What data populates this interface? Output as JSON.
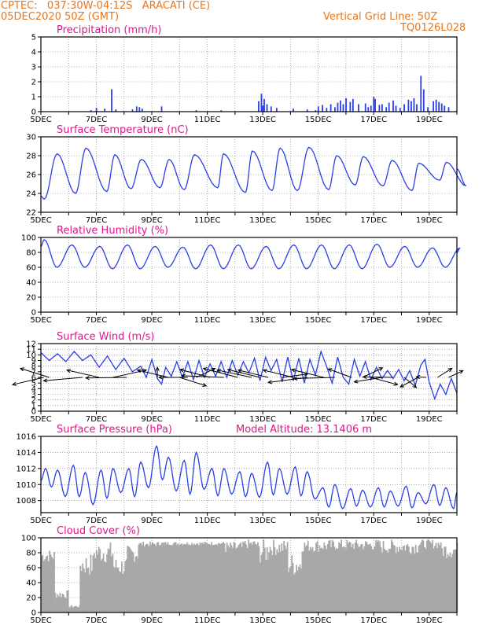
{
  "header": {
    "station": "CPTEC:   037:30W-04:12S   ARACATI (CE)",
    "datetime": "05DEC2020 50Z (GMT)",
    "grid_note": "Vertical Grid Line: 50Z",
    "code": "TQ0126L028"
  },
  "chart_data": [
    {
      "type": "bar",
      "title": "Precipitation (mm/h)",
      "ylim": [
        0,
        5
      ],
      "yticks": [
        0,
        1,
        2,
        3,
        4,
        5
      ],
      "xlim": [
        5,
        20
      ],
      "xticks": [
        "5DEC",
        "7DEC",
        "9DEC",
        "11DEC",
        "13DEC",
        "15DEC",
        "17DEC",
        "19DEC"
      ],
      "color": "#2b3fe6",
      "bars": [
        [
          6.8,
          0.1
        ],
        [
          7.0,
          0.25
        ],
        [
          7.3,
          0.2
        ],
        [
          7.55,
          1.5
        ],
        [
          7.7,
          0.15
        ],
        [
          8.3,
          0.15
        ],
        [
          8.45,
          0.35
        ],
        [
          8.55,
          0.3
        ],
        [
          8.65,
          0.2
        ],
        [
          9.35,
          0.35
        ],
        [
          10.6,
          0.1
        ],
        [
          11.5,
          0.1
        ],
        [
          12.85,
          0.7
        ],
        [
          12.95,
          1.2
        ],
        [
          13.0,
          0.4
        ],
        [
          13.05,
          0.85
        ],
        [
          13.15,
          0.5
        ],
        [
          13.3,
          0.35
        ],
        [
          13.5,
          0.25
        ],
        [
          14.1,
          0.2
        ],
        [
          14.6,
          0.15
        ],
        [
          14.9,
          0.1
        ],
        [
          15.0,
          0.35
        ],
        [
          15.15,
          0.45
        ],
        [
          15.3,
          0.25
        ],
        [
          15.45,
          0.5
        ],
        [
          15.6,
          0.3
        ],
        [
          15.7,
          0.6
        ],
        [
          15.8,
          0.75
        ],
        [
          15.9,
          0.5
        ],
        [
          16.0,
          0.9
        ],
        [
          16.15,
          0.65
        ],
        [
          16.25,
          0.85
        ],
        [
          16.45,
          0.5
        ],
        [
          16.7,
          0.55
        ],
        [
          16.8,
          0.3
        ],
        [
          16.9,
          0.4
        ],
        [
          17.0,
          1.0
        ],
        [
          17.05,
          0.85
        ],
        [
          17.2,
          0.45
        ],
        [
          17.3,
          0.5
        ],
        [
          17.45,
          0.3
        ],
        [
          17.55,
          0.6
        ],
        [
          17.7,
          0.75
        ],
        [
          17.8,
          0.4
        ],
        [
          17.95,
          0.25
        ],
        [
          18.1,
          0.5
        ],
        [
          18.25,
          0.8
        ],
        [
          18.35,
          0.7
        ],
        [
          18.45,
          0.9
        ],
        [
          18.55,
          0.5
        ],
        [
          18.7,
          2.4
        ],
        [
          18.8,
          1.5
        ],
        [
          18.95,
          0.3
        ],
        [
          19.15,
          0.7
        ],
        [
          19.25,
          0.8
        ],
        [
          19.35,
          0.65
        ],
        [
          19.45,
          0.55
        ],
        [
          19.55,
          0.4
        ],
        [
          19.7,
          0.3
        ]
      ]
    },
    {
      "type": "line",
      "title": "Surface Temperature (nC)",
      "ylim": [
        22,
        30
      ],
      "yticks": [
        22,
        24,
        26,
        28,
        30
      ],
      "xlim": [
        5,
        20
      ],
      "xticks": [
        "5DEC",
        "7DEC",
        "9DEC",
        "11DEC",
        "13DEC",
        "15DEC",
        "17DEC",
        "19DEC"
      ],
      "color": "#2b3fe6",
      "min_hours": [
        3,
        6,
        9,
        6,
        7,
        4,
        9,
        9,
        8,
        6,
        9,
        8,
        8,
        9,
        9
      ],
      "max_hours": [
        14,
        15,
        16,
        15,
        15,
        13,
        14,
        15,
        15,
        16,
        16,
        15,
        16,
        15,
        15
      ],
      "daily_min": [
        23.4,
        24.0,
        24.2,
        24.5,
        24.6,
        24.4,
        24.6,
        24.1,
        24.3,
        24.3,
        24.4,
        24.9,
        24.8,
        24.3,
        25.4,
        24.8
      ],
      "daily_max": [
        28.2,
        28.8,
        28.1,
        27.6,
        27.6,
        28.1,
        28.2,
        28.5,
        28.8,
        28.9,
        28.0,
        27.9,
        27.5,
        27.2,
        27.3
      ],
      "end_value": 26.6
    },
    {
      "type": "line",
      "title": "Relative Humidity (%)",
      "ylim": [
        0,
        100
      ],
      "yticks": [
        0,
        20,
        40,
        60,
        80,
        100
      ],
      "xlim": [
        5,
        20
      ],
      "xticks": [
        "5DEC",
        "7DEC",
        "9DEC",
        "11DEC",
        "13DEC",
        "15DEC",
        "17DEC",
        "19DEC"
      ],
      "color": "#2b3fe6",
      "start_value": 88,
      "daily_max": [
        97,
        90,
        88,
        90,
        88,
        87,
        90,
        90,
        88,
        90,
        90,
        90,
        91,
        88,
        86,
        86
      ],
      "daily_min": [
        60,
        60,
        58,
        58,
        60,
        58,
        58,
        58,
        58,
        58,
        58,
        58,
        60,
        60,
        60
      ],
      "end_value": 80
    },
    {
      "type": "line",
      "title": "Surface Wind (m/s)",
      "ylim": [
        0,
        12
      ],
      "yticks": [
        0,
        1,
        2,
        3,
        4,
        5,
        6,
        7,
        8,
        9,
        10,
        11,
        12
      ],
      "xlim": [
        5,
        20
      ],
      "xticks": [
        "5DEC",
        "7DEC",
        "9DEC",
        "11DEC",
        "13DEC",
        "15DEC",
        "17DEC",
        "19DEC"
      ],
      "color": "#2b3fe6",
      "wind_speed": [
        [
          5.0,
          10.4
        ],
        [
          5.3,
          9.0
        ],
        [
          5.6,
          10.2
        ],
        [
          5.9,
          8.8
        ],
        [
          6.2,
          10.6
        ],
        [
          6.5,
          9.0
        ],
        [
          6.8,
          10.0
        ],
        [
          7.1,
          7.8
        ],
        [
          7.4,
          9.8
        ],
        [
          7.7,
          7.4
        ],
        [
          8.0,
          9.4
        ],
        [
          8.3,
          7.0
        ],
        [
          8.6,
          8.0
        ],
        [
          8.8,
          6.0
        ],
        [
          9.0,
          9.2
        ],
        [
          9.2,
          5.8
        ],
        [
          9.35,
          4.8
        ],
        [
          9.5,
          7.8
        ],
        [
          9.7,
          6.2
        ],
        [
          9.9,
          8.8
        ],
        [
          10.1,
          6.0
        ],
        [
          10.3,
          8.8
        ],
        [
          10.5,
          5.6
        ],
        [
          10.7,
          9.0
        ],
        [
          10.9,
          6.0
        ],
        [
          11.1,
          8.4
        ],
        [
          11.3,
          6.2
        ],
        [
          11.5,
          8.8
        ],
        [
          11.7,
          6.0
        ],
        [
          11.9,
          9.0
        ],
        [
          12.1,
          6.4
        ],
        [
          12.3,
          8.8
        ],
        [
          12.5,
          6.8
        ],
        [
          12.7,
          9.4
        ],
        [
          12.9,
          5.4
        ],
        [
          13.1,
          9.6
        ],
        [
          13.3,
          7.2
        ],
        [
          13.5,
          9.2
        ],
        [
          13.7,
          5.2
        ],
        [
          13.9,
          9.6
        ],
        [
          14.1,
          5.4
        ],
        [
          14.3,
          9.4
        ],
        [
          14.5,
          5.0
        ],
        [
          14.7,
          9.2
        ],
        [
          14.9,
          6.4
        ],
        [
          15.1,
          10.6
        ],
        [
          15.3,
          8.0
        ],
        [
          15.5,
          5.0
        ],
        [
          15.7,
          9.6
        ],
        [
          15.9,
          6.0
        ],
        [
          16.1,
          4.8
        ],
        [
          16.3,
          9.2
        ],
        [
          16.5,
          6.2
        ],
        [
          16.7,
          8.8
        ],
        [
          16.9,
          5.6
        ],
        [
          17.1,
          7.8
        ],
        [
          17.3,
          5.8
        ],
        [
          17.5,
          7.2
        ],
        [
          17.7,
          5.8
        ],
        [
          17.9,
          7.4
        ],
        [
          18.1,
          5.4
        ],
        [
          18.3,
          7.2
        ],
        [
          18.5,
          4.6
        ],
        [
          18.7,
          8.2
        ],
        [
          18.85,
          9.2
        ],
        [
          19.0,
          5.2
        ],
        [
          19.2,
          2.2
        ],
        [
          19.4,
          4.8
        ],
        [
          19.6,
          3.0
        ],
        [
          19.8,
          5.8
        ],
        [
          20.0,
          3.2
        ]
      ],
      "arrows": [
        [
          5.1,
          -5.6,
          -2.6
        ],
        [
          5.3,
          -5.2,
          3.2
        ],
        [
          6.5,
          -7.0,
          -1.2
        ],
        [
          7.1,
          -5.8,
          2.6
        ],
        [
          7.6,
          6.0,
          2.6
        ],
        [
          8.1,
          -7.4,
          -0.2
        ],
        [
          9.2,
          0.0,
          3.6
        ],
        [
          9.6,
          -5.6,
          2.6
        ],
        [
          10.0,
          4.8,
          -3.0
        ],
        [
          10.3,
          -5.2,
          0.0
        ],
        [
          10.6,
          3.4,
          3.2
        ],
        [
          11.1,
          -5.4,
          2.8
        ],
        [
          11.6,
          -7.6,
          0.6
        ],
        [
          12.1,
          -6.2,
          3.2
        ],
        [
          12.6,
          -6.2,
          2.6
        ],
        [
          12.9,
          -5.8,
          2.8
        ],
        [
          13.2,
          -5.4,
          2.6
        ],
        [
          13.7,
          4.6,
          1.2
        ],
        [
          14.1,
          -5.4,
          2.6
        ],
        [
          14.6,
          -7.0,
          -1.8
        ],
        [
          15.2,
          -5.8,
          2.8
        ],
        [
          15.6,
          -7.4,
          -0.4
        ],
        [
          16.2,
          -4.2,
          3.0
        ],
        [
          16.6,
          3.6,
          3.4
        ],
        [
          16.9,
          4.8,
          -2.6
        ],
        [
          17.3,
          -5.0,
          -1.6
        ],
        [
          17.7,
          -5.4,
          0.2
        ],
        [
          18.1,
          2.2,
          -3.6
        ],
        [
          18.6,
          -3.2,
          -3.4
        ],
        [
          18.9,
          -1.8,
          0.2
        ],
        [
          19.3,
          2.6,
          3.2
        ],
        [
          19.7,
          2.6,
          2.4
        ]
      ]
    },
    {
      "type": "line",
      "title": "Surface Pressure (hPa)",
      "title_right": "Model Altitude: 13.1406 m",
      "ylim": [
        1006.5,
        1016
      ],
      "yticks": [
        1008,
        1010,
        1012,
        1014,
        1016
      ],
      "xlim": [
        5,
        20
      ],
      "xticks": [
        "5DEC",
        "7DEC",
        "9DEC",
        "11DEC",
        "13DEC",
        "15DEC",
        "17DEC",
        "19DEC"
      ],
      "color": "#2b3fe6",
      "start_value": 1010.5,
      "daily_cycles": [
        [
          1012.0,
          1009.7,
          1011.8,
          1008.5
        ],
        [
          1012.4,
          1008.5,
          1011.5,
          1007.5
        ],
        [
          1011.8,
          1008.3,
          1012.0,
          1009.0
        ],
        [
          1012.0,
          1008.5,
          1012.8,
          1009.6
        ],
        [
          1014.8,
          1010.6,
          1013.4,
          1009.2
        ],
        [
          1013.0,
          1008.8,
          1014.0,
          1009.4
        ],
        [
          1012.0,
          1008.6,
          1012.0,
          1008.8
        ],
        [
          1011.6,
          1008.5,
          1011.4,
          1008.4
        ],
        [
          1012.8,
          1008.7,
          1012.0,
          1008.8
        ],
        [
          1012.2,
          1008.6,
          1011.6,
          1008.2
        ],
        [
          1009.6,
          1007.2,
          1010.0,
          1007.0
        ],
        [
          1009.5,
          1007.3,
          1009.3,
          1007.2
        ],
        [
          1009.6,
          1007.2,
          1009.2,
          1007.3
        ],
        [
          1009.8,
          1007.1,
          1009.0,
          1007.6
        ],
        [
          1010.0,
          1007.4,
          1009.6,
          1007.0
        ]
      ],
      "end_value": 1009.0
    },
    {
      "type": "bar",
      "title": "Cloud Cover (%)",
      "ylim": [
        0,
        100
      ],
      "yticks": [
        0,
        20,
        40,
        60,
        80,
        100
      ],
      "xlim": [
        5,
        20
      ],
      "xticks": [
        "5DEC",
        "7DEC",
        "9DEC",
        "11DEC",
        "13DEC",
        "15DEC",
        "17DEC",
        "19DEC"
      ],
      "color": "#a8a8a8",
      "segments": [
        [
          5.0,
          5.5,
          45,
          85
        ],
        [
          5.5,
          6.0,
          5,
          30
        ],
        [
          6.0,
          6.4,
          2,
          10
        ],
        [
          6.4,
          6.9,
          10,
          80
        ],
        [
          6.9,
          7.6,
          30,
          95
        ],
        [
          7.6,
          8.1,
          15,
          75
        ],
        [
          8.1,
          8.5,
          40,
          90
        ],
        [
          8.5,
          9.3,
          80,
          95
        ],
        [
          9.3,
          11.6,
          84,
          95
        ],
        [
          11.6,
          12.3,
          60,
          95
        ],
        [
          12.3,
          12.8,
          70,
          98
        ],
        [
          12.8,
          13.2,
          25,
          98
        ],
        [
          13.2,
          13.9,
          50,
          98
        ],
        [
          13.9,
          14.4,
          10,
          80
        ],
        [
          14.4,
          15.6,
          60,
          98
        ],
        [
          15.6,
          17.2,
          65,
          98
        ],
        [
          17.2,
          18.6,
          55,
          98
        ],
        [
          18.6,
          19.4,
          70,
          98
        ],
        [
          19.4,
          20.0,
          45,
          95
        ]
      ]
    }
  ]
}
